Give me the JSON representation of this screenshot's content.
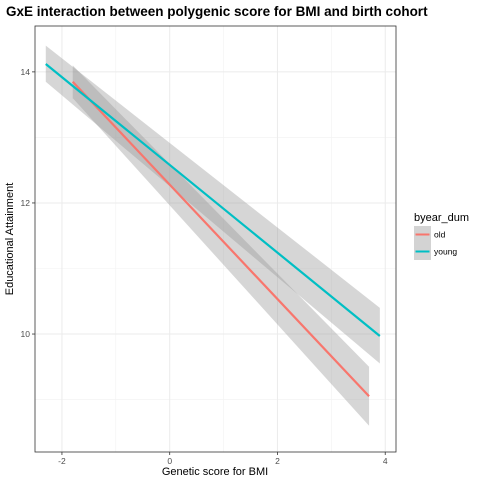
{
  "chart_data": {
    "type": "line",
    "title": "GxE interaction between polygenic score for BMI and birth cohort",
    "xlabel": "Genetic score for BMI",
    "ylabel": "Educational Attainment",
    "xlim": [
      -2.5,
      4.2
    ],
    "ylim": [
      8.2,
      14.7
    ],
    "x_ticks": [
      -2,
      0,
      2,
      4
    ],
    "x_tick_labels": [
      "-2",
      "0",
      "2",
      "4"
    ],
    "y_ticks": [
      10,
      12,
      14
    ],
    "y_tick_labels": [
      "10",
      "12",
      "14"
    ],
    "grid": true,
    "legend_position": "right",
    "legend": {
      "title": "byear_dum",
      "entries": [
        {
          "label": "old",
          "color": "#F8766D"
        },
        {
          "label": "young",
          "color": "#00BFC4"
        }
      ]
    },
    "series": [
      {
        "name": "old",
        "color": "#F8766D",
        "x": [
          -1.8,
          3.7
        ],
        "y": [
          13.85,
          9.05
        ],
        "ci_lower": [
          13.6,
          8.6
        ],
        "ci_upper": [
          14.1,
          9.5
        ]
      },
      {
        "name": "young",
        "color": "#00BFC4",
        "x": [
          -2.3,
          3.9
        ],
        "y": [
          14.12,
          9.97
        ],
        "ci_lower": [
          13.85,
          9.55
        ],
        "ci_upper": [
          14.4,
          10.4
        ]
      }
    ]
  }
}
